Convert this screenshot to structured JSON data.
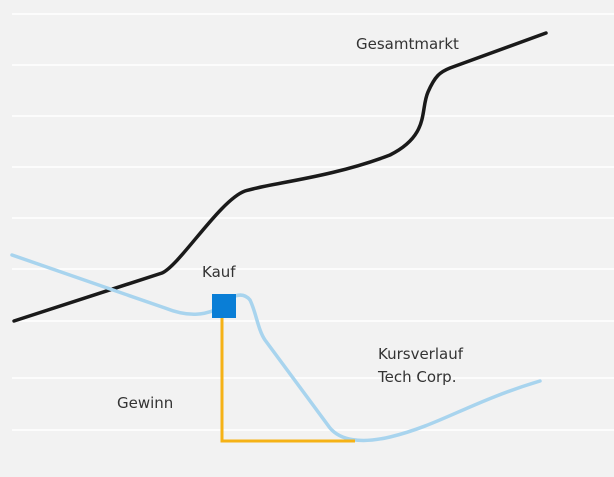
{
  "labels": {
    "market": "Gesamtmarkt",
    "buy": "Kauf",
    "stock": [
      "Kursverlauf",
      "Tech Corp."
    ],
    "profit": "Gewinn"
  }
}
